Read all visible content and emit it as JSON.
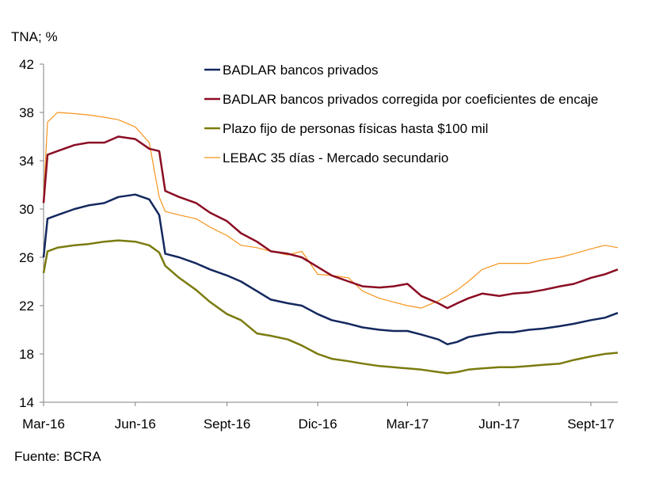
{
  "chart_data": {
    "type": "line",
    "ylabel": "TNA; %",
    "source": "Fuente: BCRA",
    "ylim": [
      14,
      42
    ],
    "yticks": [
      14,
      18,
      22,
      26,
      30,
      34,
      38,
      42
    ],
    "xlim": [
      "2016-03-01",
      "2017-09-28"
    ],
    "xticks": [
      {
        "date": "2016-03-01",
        "label": "Mar-16"
      },
      {
        "date": "2016-06-01",
        "label": "Jun-16"
      },
      {
        "date": "2016-09-01",
        "label": "Sept-16"
      },
      {
        "date": "2016-12-01",
        "label": "Dic-16"
      },
      {
        "date": "2017-03-01",
        "label": "Mar-17"
      },
      {
        "date": "2017-06-01",
        "label": "Jun-17"
      },
      {
        "date": "2017-09-01",
        "label": "Sept-17"
      }
    ],
    "grid": false,
    "legend": "top-center",
    "x": [
      "2016-03-01",
      "2016-03-05",
      "2016-03-15",
      "2016-04-01",
      "2016-04-15",
      "2016-05-01",
      "2016-05-15",
      "2016-06-01",
      "2016-06-15",
      "2016-06-25",
      "2016-07-01",
      "2016-07-15",
      "2016-08-01",
      "2016-08-15",
      "2016-09-01",
      "2016-09-15",
      "2016-10-01",
      "2016-10-15",
      "2016-11-01",
      "2016-11-15",
      "2016-12-01",
      "2016-12-15",
      "2017-01-01",
      "2017-01-15",
      "2017-02-01",
      "2017-02-15",
      "2017-03-01",
      "2017-03-15",
      "2017-04-01",
      "2017-04-10",
      "2017-04-20",
      "2017-05-01",
      "2017-05-15",
      "2017-06-01",
      "2017-06-15",
      "2017-07-01",
      "2017-07-15",
      "2017-08-01",
      "2017-08-15",
      "2017-09-01",
      "2017-09-15",
      "2017-09-28"
    ],
    "series": [
      {
        "name": "BADLAR bancos privados",
        "color": "#13285e",
        "width": 2.5,
        "values": [
          26,
          29.2,
          29.5,
          30,
          30.3,
          30.5,
          31,
          31.2,
          30.8,
          29.5,
          26.3,
          26,
          25.5,
          25,
          24.5,
          24,
          23.2,
          22.5,
          22.2,
          22,
          21.3,
          20.8,
          20.5,
          20.2,
          20,
          19.9,
          19.9,
          19.6,
          19.2,
          18.8,
          19,
          19.4,
          19.6,
          19.8,
          19.8,
          20,
          20.1,
          20.3,
          20.5,
          20.8,
          21,
          21.4
        ]
      },
      {
        "name": "BADLAR bancos privados corregida por coeficientes de encaje",
        "color": "#8b0d23",
        "width": 2.5,
        "values": [
          30.5,
          34.5,
          34.8,
          35.3,
          35.5,
          35.5,
          36,
          35.8,
          35,
          34.8,
          31.5,
          31,
          30.5,
          29.7,
          29,
          28,
          27.3,
          26.5,
          26.3,
          26,
          25.2,
          24.5,
          24,
          23.6,
          23.5,
          23.6,
          23.8,
          22.8,
          22.2,
          21.8,
          22.2,
          22.6,
          23,
          22.8,
          23,
          23.1,
          23.3,
          23.6,
          23.8,
          24.3,
          24.6,
          25
        ]
      },
      {
        "name": "Plazo fijo de personas físicas hasta $100 mil",
        "color": "#7b7b0f",
        "width": 2.5,
        "values": [
          24.7,
          26.5,
          26.8,
          27,
          27.1,
          27.3,
          27.4,
          27.3,
          27,
          26.4,
          25.3,
          24.3,
          23.3,
          22.3,
          21.3,
          20.8,
          19.7,
          19.5,
          19.2,
          18.7,
          18,
          17.6,
          17.4,
          17.2,
          17,
          16.9,
          16.8,
          16.7,
          16.5,
          16.4,
          16.5,
          16.7,
          16.8,
          16.9,
          16.9,
          17,
          17.1,
          17.2,
          17.5,
          17.8,
          18,
          18.1
        ]
      },
      {
        "name": "LEBAC 35 días - Mercado secundario",
        "color": "#f7941d",
        "width": 1.2,
        "values": [
          31,
          37.2,
          38,
          37.9,
          37.8,
          37.6,
          37.4,
          36.8,
          35.5,
          31,
          29.8,
          29.5,
          29.2,
          28.5,
          27.8,
          27,
          26.8,
          26.5,
          26.2,
          26.5,
          24.6,
          24.5,
          24.3,
          23.2,
          22.6,
          22.3,
          22,
          21.8,
          22.4,
          22.8,
          23.3,
          24,
          25,
          25.5,
          25.5,
          25.5,
          25.8,
          26,
          26.3,
          26.7,
          27,
          26.8
        ]
      }
    ]
  }
}
